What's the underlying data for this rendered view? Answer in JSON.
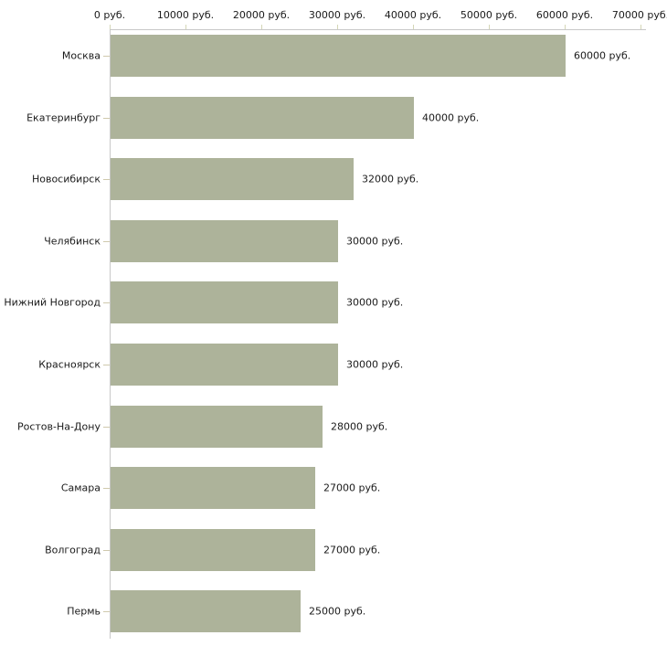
{
  "chart_data": {
    "type": "bar",
    "orientation": "horizontal",
    "title": "",
    "xlabel": "",
    "ylabel": "",
    "grid": false,
    "legend": false,
    "xlim": [
      0,
      70000
    ],
    "x_ticks": [
      0,
      10000,
      20000,
      30000,
      40000,
      50000,
      60000,
      70000
    ],
    "x_tick_labels": [
      "0 руб.",
      "10000 руб.",
      "20000 руб.",
      "30000 руб.",
      "40000 руб.",
      "50000 руб.",
      "60000 руб.",
      "70000 руб."
    ],
    "categories": [
      "Москва",
      "Екатеринбург",
      "Новосибирск",
      "Челябинск",
      "Нижний Новгород",
      "Красноярск",
      "Ростов-На-Дону",
      "Самара",
      "Волгоград",
      "Пермь"
    ],
    "values": [
      60000,
      40000,
      32000,
      30000,
      30000,
      30000,
      28000,
      27000,
      27000,
      25000
    ],
    "value_labels": [
      "60000 руб.",
      "40000 руб.",
      "32000 руб.",
      "30000 руб.",
      "30000 руб.",
      "30000 руб.",
      "28000 руб.",
      "27000 руб.",
      "27000 руб.",
      "25000 руб."
    ],
    "bar_color": "#adb39a",
    "axis_color": "#c8c8c8",
    "x_tick_color": "#d4d6b6",
    "y_tick_color": "#cfc9ad",
    "text_color": "#1a1a1a",
    "background_color": "#ffffff"
  }
}
